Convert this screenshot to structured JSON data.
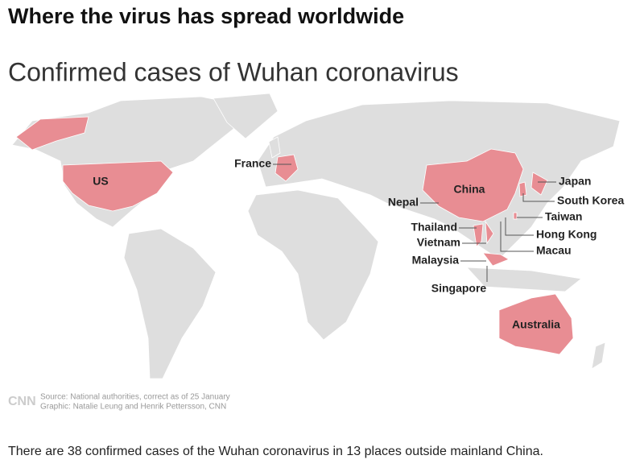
{
  "header": {
    "title": "Where the virus has spread worldwide",
    "subtitle": "Confirmed cases of Wuhan coronavirus"
  },
  "map": {
    "labels": [
      "US",
      "France",
      "China",
      "Nepal",
      "Japan",
      "South Korea",
      "Taiwan",
      "Thailand",
      "Hong Kong",
      "Vietnam",
      "Macau",
      "Malaysia",
      "Singapore",
      "Australia"
    ]
  },
  "footer": {
    "logo": "CNN",
    "source": "Source: National authorities, correct as of 25 January",
    "credit": "Graphic: Natalie Leung and Henrik Pettersson, CNN"
  },
  "caption": "There are 38 confirmed cases of the Wuhan coronavirus in 13 places outside mainland China."
}
